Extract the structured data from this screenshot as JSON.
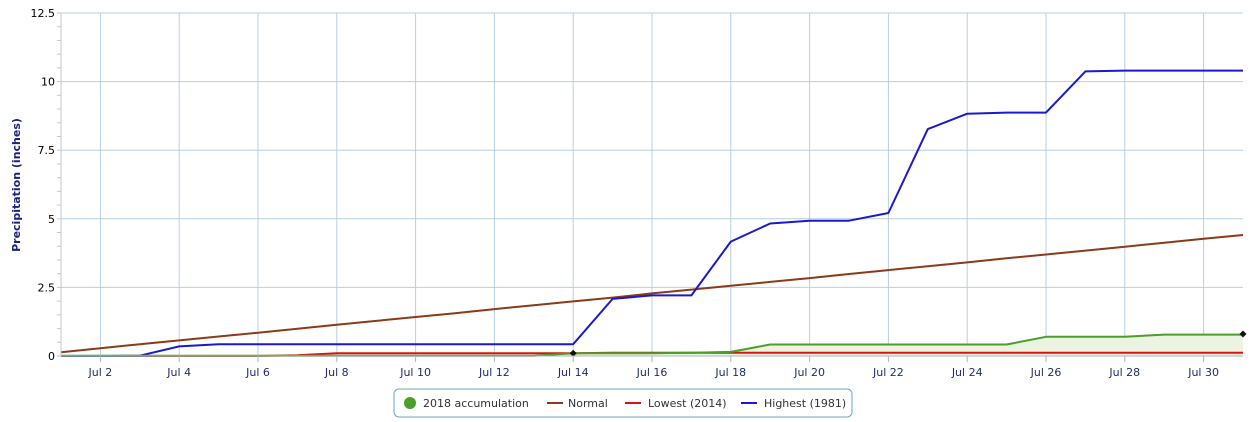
{
  "chart_data": {
    "type": "line",
    "title": "",
    "xlabel": "",
    "ylabel": "Precipitation (inches)",
    "xlim": [
      1,
      31
    ],
    "ylim": [
      0,
      12.5
    ],
    "y_ticks": [
      0,
      2.5,
      5,
      7.5,
      10,
      12.5
    ],
    "y_tick_labels": [
      "0",
      "2.5",
      "5",
      "7.5",
      "10",
      "12.5"
    ],
    "x_ticks": [
      2,
      4,
      6,
      8,
      10,
      12,
      14,
      16,
      18,
      20,
      22,
      24,
      26,
      28,
      30
    ],
    "x_tick_labels": [
      "Jul 2",
      "Jul 4",
      "Jul 6",
      "Jul 8",
      "Jul 10",
      "Jul 12",
      "Jul 14",
      "Jul 16",
      "Jul 18",
      "Jul 20",
      "Jul 22",
      "Jul 24",
      "Jul 26",
      "Jul 28",
      "Jul 30"
    ],
    "grid": true,
    "legend_position": "bottom-center",
    "x": [
      1,
      2,
      3,
      4,
      5,
      6,
      7,
      8,
      9,
      10,
      11,
      12,
      13,
      14,
      15,
      16,
      17,
      18,
      19,
      20,
      21,
      22,
      23,
      24,
      25,
      26,
      27,
      28,
      29,
      30,
      31
    ],
    "series": [
      {
        "name": "2018 accumulation",
        "style": "area",
        "color": "#4a9e2a",
        "fill": "#eaf4e0",
        "marker": "circle",
        "values": [
          0.01,
          0.01,
          0.01,
          0.01,
          0.01,
          0.01,
          0.01,
          0.01,
          0.01,
          0.01,
          0.01,
          0.01,
          0.01,
          0.1,
          0.1,
          0.1,
          0.12,
          0.15,
          0.42,
          0.42,
          0.42,
          0.42,
          0.42,
          0.42,
          0.42,
          0.7,
          0.7,
          0.7,
          0.78,
          0.78,
          0.78
        ],
        "highlighted_points": [
          [
            14,
            0.1
          ],
          [
            31,
            0.8
          ]
        ]
      },
      {
        "name": "Normal",
        "color": "#8b3a1a",
        "values": [
          0.14,
          0.28,
          0.43,
          0.57,
          0.71,
          0.85,
          0.99,
          1.14,
          1.28,
          1.42,
          1.56,
          1.71,
          1.85,
          1.99,
          2.13,
          2.28,
          2.42,
          2.56,
          2.7,
          2.84,
          2.99,
          3.13,
          3.27,
          3.41,
          3.56,
          3.7,
          3.84,
          3.98,
          4.13,
          4.27,
          4.41
        ]
      },
      {
        "name": "Lowest (2014)",
        "color": "#dd1111",
        "values": [
          0.0,
          0.0,
          0.0,
          0.0,
          0.0,
          0.0,
          0.03,
          0.1,
          0.1,
          0.1,
          0.1,
          0.1,
          0.1,
          0.1,
          0.12,
          0.12,
          0.12,
          0.12,
          0.12,
          0.12,
          0.12,
          0.12,
          0.12,
          0.12,
          0.12,
          0.12,
          0.12,
          0.12,
          0.12,
          0.12,
          0.12
        ]
      },
      {
        "name": "Highest (1981)",
        "color": "#1a1acc",
        "values": [
          0.0,
          0.0,
          0.01,
          0.35,
          0.43,
          0.43,
          0.43,
          0.43,
          0.43,
          0.43,
          0.43,
          0.43,
          0.43,
          0.43,
          2.08,
          2.21,
          2.21,
          4.17,
          4.83,
          4.93,
          4.93,
          5.21,
          8.27,
          8.83,
          8.87,
          8.87,
          10.37,
          10.4,
          10.4,
          10.4,
          10.4
        ]
      }
    ]
  }
}
